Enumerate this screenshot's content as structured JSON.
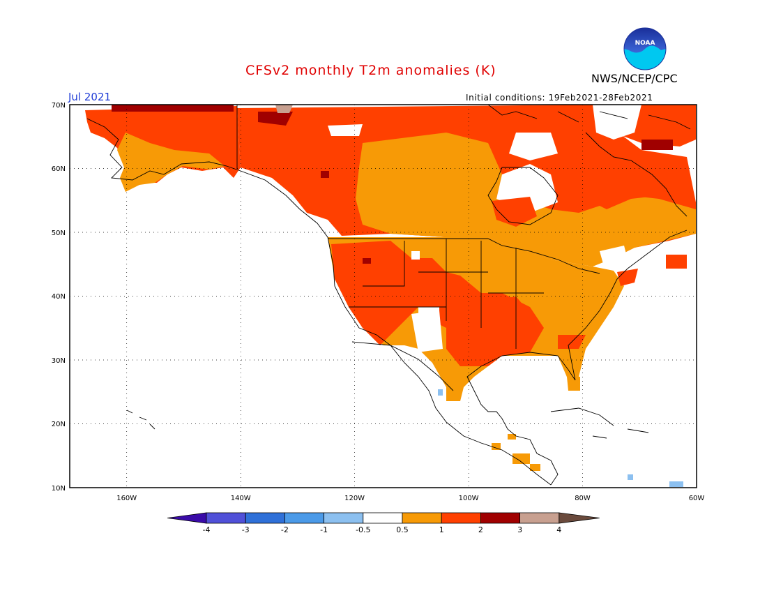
{
  "header": {
    "title": "CFSv2 monthly T2m anomalies (K)",
    "org": "NWS/NCEP/CPC",
    "logo_text": "NOAA",
    "month": "Jul 2021",
    "initial_conditions": "Initial conditions: 19Feb2021-28Feb2021"
  },
  "map": {
    "lon_range": [
      -170,
      -60
    ],
    "lat_range": [
      10,
      70
    ],
    "lat_labels": [
      "10N",
      "20N",
      "30N",
      "40N",
      "50N",
      "60N",
      "70N"
    ],
    "lon_labels": [
      "160W",
      "140W",
      "120W",
      "100W",
      "80W",
      "60W"
    ]
  },
  "colorbar": {
    "labels": [
      "-4",
      "-3",
      "-2",
      "-1",
      "-0.5",
      "0.5",
      "1",
      "2",
      "3",
      "4"
    ],
    "colors": [
      "#3a0ba8",
      "#5050d8",
      "#2f70d8",
      "#4b9ae8",
      "#8cc0f0",
      "#ffffff",
      "#f79a06",
      "#ff4000",
      "#a00000",
      "#c8a090",
      "#6a4a3c"
    ]
  },
  "colors": {
    "land_weak": "#f79a06",
    "land_mid": "#ff4000",
    "land_strong": "#a00000",
    "land_extreme": "#c8a090",
    "cool": "#8cc0f0",
    "title": "#e00000",
    "month": "#1f3cd6"
  }
}
